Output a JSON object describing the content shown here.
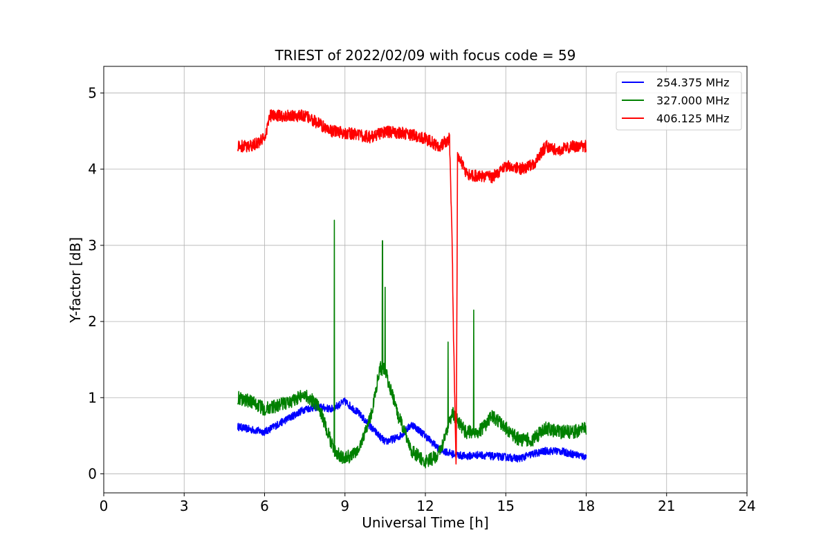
{
  "chart_data": {
    "type": "line",
    "title": "TRIEST of 2022/02/09 with focus code = 59",
    "xlabel": "Universal Time [h]",
    "ylabel": "Y-factor [dB]",
    "xlim": [
      0,
      24
    ],
    "ylim": [
      -0.25,
      5.35
    ],
    "xticks": [
      0,
      3,
      6,
      9,
      12,
      15,
      18,
      21,
      24
    ],
    "yticks": [
      0,
      1,
      2,
      3,
      4,
      5
    ],
    "grid": true,
    "legend_position": "top-right",
    "series": [
      {
        "name": "254.375 MHz",
        "color": "#0000ff",
        "x": [
          5.0,
          5.5,
          6.0,
          6.5,
          7.0,
          7.5,
          8.0,
          8.5,
          9.0,
          9.5,
          10.0,
          10.5,
          11.0,
          11.5,
          12.0,
          12.5,
          13.0,
          13.5,
          14.0,
          14.5,
          15.0,
          15.5,
          16.0,
          16.5,
          17.0,
          17.5,
          18.0
        ],
        "y": [
          0.62,
          0.58,
          0.55,
          0.65,
          0.75,
          0.85,
          0.88,
          0.85,
          0.95,
          0.8,
          0.6,
          0.42,
          0.48,
          0.65,
          0.5,
          0.33,
          0.26,
          0.23,
          0.25,
          0.23,
          0.22,
          0.2,
          0.26,
          0.3,
          0.3,
          0.26,
          0.22
        ],
        "noise": 0.05
      },
      {
        "name": "327.000 MHz",
        "color": "#008000",
        "x": [
          5.0,
          5.5,
          6.0,
          6.5,
          7.0,
          7.5,
          8.0,
          8.3,
          8.6,
          9.0,
          9.5,
          10.0,
          10.3,
          10.5,
          11.0,
          11.5,
          12.0,
          12.5,
          13.0,
          13.5,
          14.0,
          14.5,
          15.0,
          15.5,
          16.0,
          16.5,
          17.0,
          17.5,
          18.0
        ],
        "y": [
          1.0,
          0.95,
          0.85,
          0.9,
          0.95,
          1.05,
          0.9,
          0.6,
          0.3,
          0.2,
          0.3,
          0.8,
          1.4,
          1.35,
          0.75,
          0.3,
          0.15,
          0.25,
          0.8,
          0.55,
          0.55,
          0.75,
          0.6,
          0.45,
          0.45,
          0.6,
          0.55,
          0.55,
          0.6
        ],
        "noise": 0.09,
        "spikes": [
          {
            "x": 8.6,
            "y": 3.33
          },
          {
            "x": 10.4,
            "y": 3.06
          },
          {
            "x": 10.5,
            "y": 2.45
          },
          {
            "x": 12.85,
            "y": 1.73
          },
          {
            "x": 13.8,
            "y": 2.15
          }
        ]
      },
      {
        "name": "406.125 MHz",
        "color": "#ff0000",
        "x": [
          5.0,
          5.5,
          6.0,
          6.2,
          6.5,
          7.0,
          7.5,
          8.0,
          8.5,
          9.0,
          9.5,
          10.0,
          10.5,
          11.0,
          11.5,
          12.0,
          12.5,
          12.9,
          13.0,
          13.05,
          13.15,
          13.2,
          13.5,
          14.0,
          14.5,
          15.0,
          15.5,
          16.0,
          16.5,
          17.0,
          17.5,
          18.0
        ],
        "y": [
          4.3,
          4.3,
          4.4,
          4.7,
          4.7,
          4.7,
          4.7,
          4.6,
          4.5,
          4.48,
          4.45,
          4.42,
          4.5,
          4.48,
          4.45,
          4.4,
          4.3,
          4.4,
          3.0,
          1.8,
          0.05,
          4.2,
          3.95,
          3.9,
          3.9,
          4.05,
          4.0,
          4.05,
          4.3,
          4.25,
          4.3,
          4.3
        ],
        "noise": 0.08
      }
    ]
  }
}
